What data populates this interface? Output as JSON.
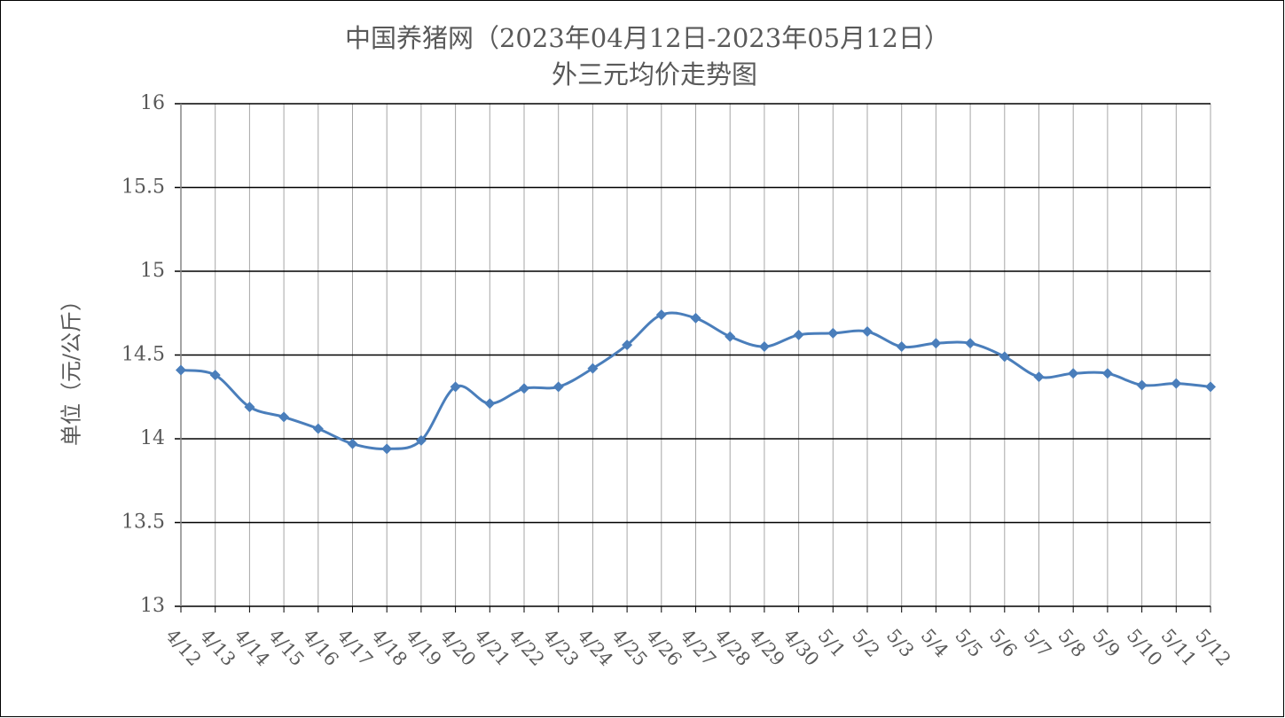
{
  "chart_data": {
    "type": "line",
    "title": "中国养猪网（2023年04月12日-2023年05月12日）",
    "subtitle": "外三元均价走势图",
    "y_label": "单位（元/公斤）",
    "categories": [
      "4/12",
      "4/13",
      "4/14",
      "4/15",
      "4/16",
      "4/17",
      "4/18",
      "4/19",
      "4/20",
      "4/21",
      "4/22",
      "4/23",
      "4/24",
      "4/25",
      "4/26",
      "4/27",
      "4/28",
      "4/29",
      "4/30",
      "5/1",
      "5/2",
      "5/3",
      "5/4",
      "5/5",
      "5/6",
      "5/7",
      "5/8",
      "5/9",
      "5/10",
      "5/11",
      "5/12"
    ],
    "values": [
      14.41,
      14.38,
      14.19,
      14.13,
      14.06,
      13.97,
      13.94,
      13.99,
      14.31,
      14.21,
      14.3,
      14.31,
      14.42,
      14.56,
      14.74,
      14.72,
      14.61,
      14.55,
      14.62,
      14.63,
      14.64,
      14.55,
      14.57,
      14.57,
      14.49,
      14.37,
      14.39,
      14.39,
      14.32,
      14.33,
      14.31
    ],
    "color": "#4a7ebb",
    "ylim": [
      13,
      16
    ],
    "yticks": [
      13,
      13.5,
      14,
      14.5,
      15,
      15.5,
      16
    ],
    "grid": true
  }
}
